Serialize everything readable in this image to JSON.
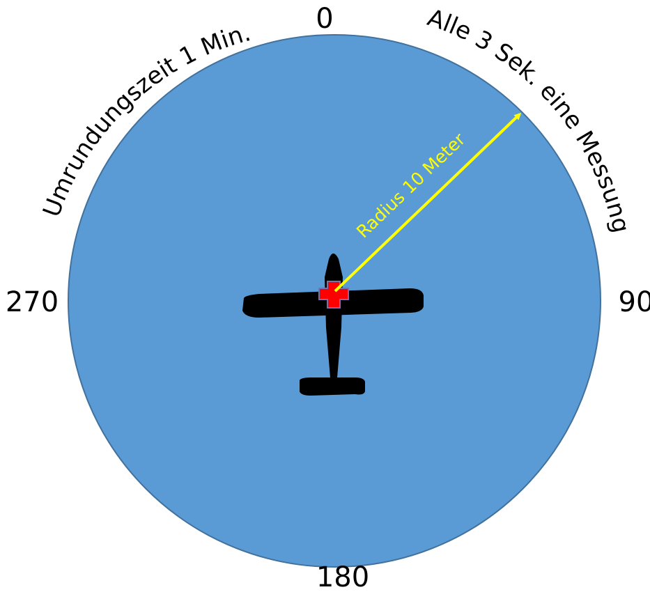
{
  "colors": {
    "background": "#ffffff",
    "circle_fill": "#5b9bd5",
    "circle_stroke": "#41719c",
    "airplane": "#000000",
    "cross_fill": "#ff0000",
    "cross_stroke": "#7f6fa8",
    "radius_arrow": "#ffff00",
    "text": "#000000"
  },
  "compass": {
    "north": "0",
    "east": "90",
    "south": "180",
    "west": "270"
  },
  "arc_labels": {
    "left": "Umrundungszeit 1 Min.",
    "right": "Alle 3 Sek. eine Messung"
  },
  "radius_label": "Radius 10 Meter",
  "icons": {
    "airplane": "airplane-silhouette-icon",
    "cross": "red-cross-icon"
  }
}
